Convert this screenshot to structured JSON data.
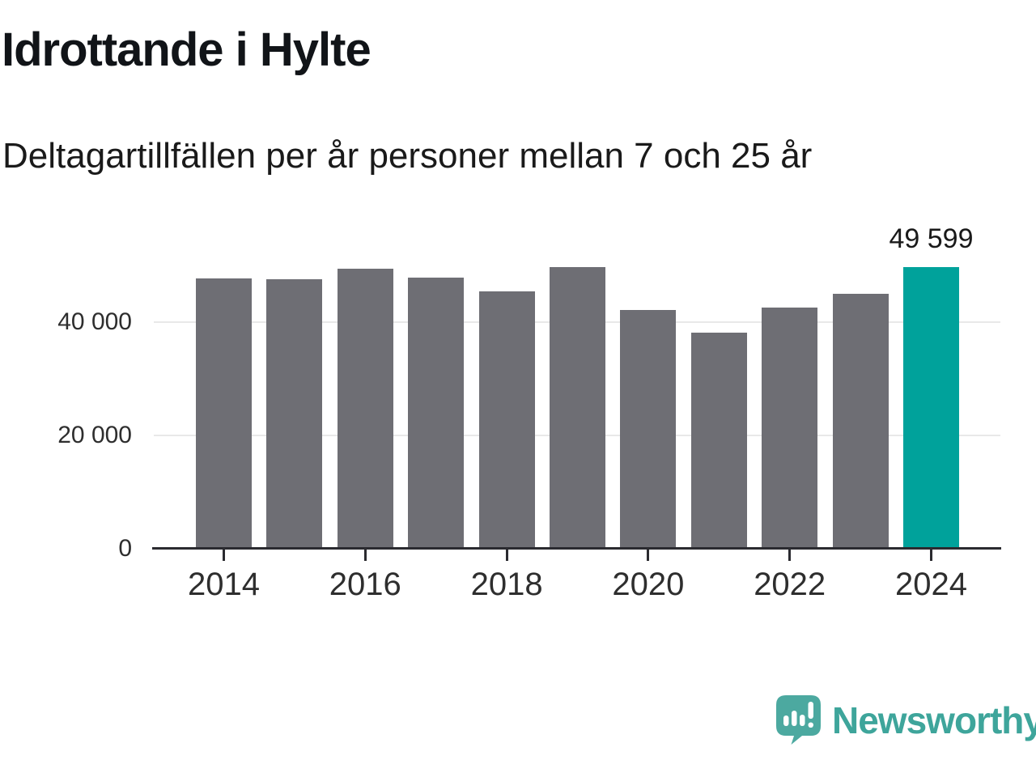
{
  "title": "Idrottande i Hylte",
  "subtitle": "Deltagartillfällen per år personer mellan 7 och 25 år",
  "chart_data": {
    "type": "bar",
    "categories": [
      "2014",
      "2015",
      "2016",
      "2017",
      "2018",
      "2019",
      "2020",
      "2021",
      "2022",
      "2023",
      "2024"
    ],
    "values": [
      47600,
      47500,
      49300,
      47800,
      45300,
      49600,
      42000,
      38100,
      42500,
      44900,
      49599
    ],
    "title": "Idrottande i Hylte",
    "subtitle": "Deltagartillfällen per år personer mellan 7 och 25 år",
    "xlabel": "",
    "ylabel": "",
    "ylim": [
      0,
      50000
    ],
    "grid": "horizontal",
    "legend": "none",
    "yticks": [
      {
        "value": 0,
        "label": "0"
      },
      {
        "value": 20000,
        "label": "20 000"
      },
      {
        "value": 40000,
        "label": "40 000"
      }
    ],
    "xtick_labels": [
      "2014",
      "2016",
      "2018",
      "2020",
      "2022",
      "2024"
    ],
    "highlight_index": 10,
    "highlight_label": "49 599",
    "colors": {
      "bar": "#6e6e74",
      "highlight": "#00a29b",
      "gridline": "#e8e8e8",
      "axis": "#2b2b30",
      "tick_text": "#2e2e2e",
      "label_text": "#1a1a1a"
    }
  },
  "footer": {
    "brand": "Newsworthy",
    "logo_icon": "newsworthy-speech-bubble-chart-icon",
    "brand_color": "#3ea59b",
    "logo_color": "#4ca9a0"
  }
}
